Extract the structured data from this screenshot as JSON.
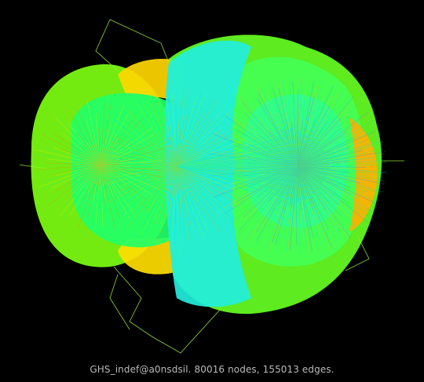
{
  "caption": "GHS_indef@a0nsdsil. 80016 nodes, 155013 edges.",
  "graph": {
    "node_count": 80016,
    "edge_count": 155013
  },
  "colors": {
    "background": "#000000",
    "caption": "#b9b9b9",
    "palette": [
      "#00e5ff",
      "#00ff9a",
      "#33ff44",
      "#88ff00",
      "#ffee00",
      "#ffaa00",
      "#ff7a00",
      "#4080ff"
    ]
  }
}
